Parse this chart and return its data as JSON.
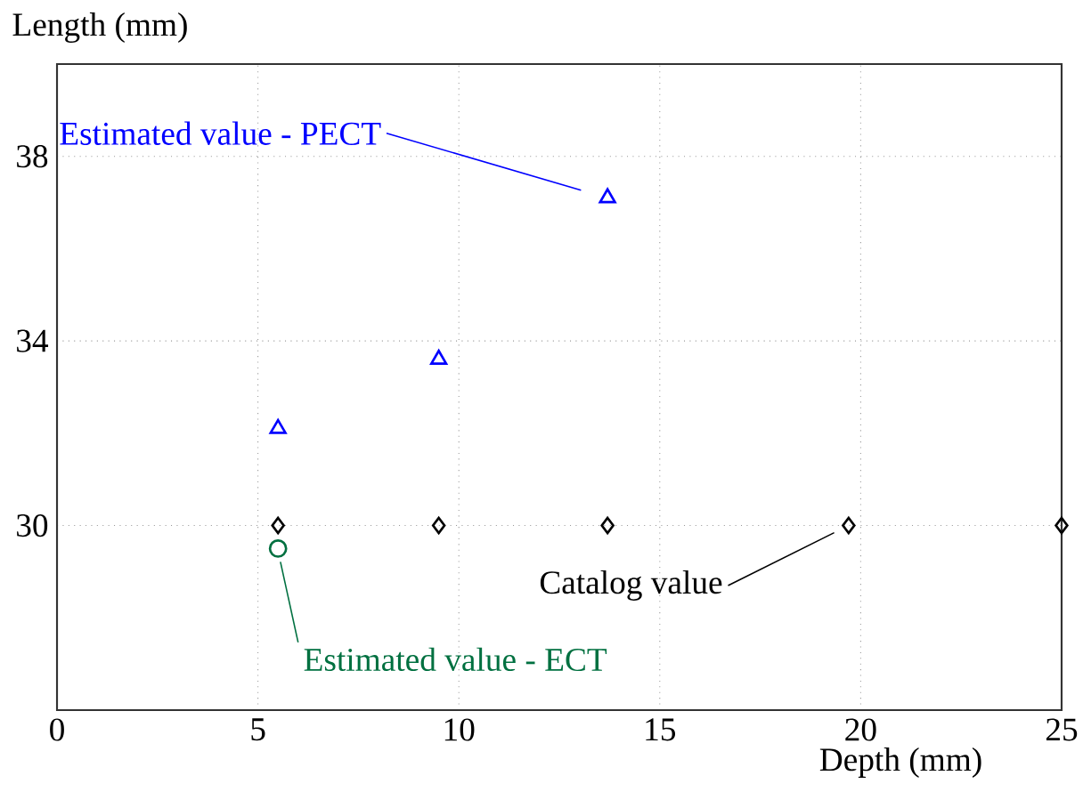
{
  "chart_data": {
    "type": "scatter",
    "xlabel": "Depth (mm)",
    "ylabel": "Length (mm)",
    "xlim": [
      0,
      25
    ],
    "ylim": [
      26,
      40
    ],
    "xticks": [
      0,
      5,
      10,
      15,
      20,
      25
    ],
    "yticks": [
      30,
      34,
      38
    ],
    "grid": true,
    "series": [
      {
        "name": "Estimated value - PECT",
        "color": "#0000ff",
        "marker": "triangle",
        "x": [
          5.5,
          9.5,
          13.7
        ],
        "values": [
          32.1,
          33.6,
          37.1
        ]
      },
      {
        "name": "Estimated value - ECT",
        "color": "#007040",
        "marker": "circle",
        "x": [
          5.5
        ],
        "values": [
          29.5
        ]
      },
      {
        "name": "Catalog value",
        "color": "#000000",
        "marker": "diamond",
        "x": [
          5.5,
          9.5,
          13.7,
          19.7,
          25
        ],
        "values": [
          30,
          30,
          30,
          30,
          30
        ]
      }
    ]
  }
}
